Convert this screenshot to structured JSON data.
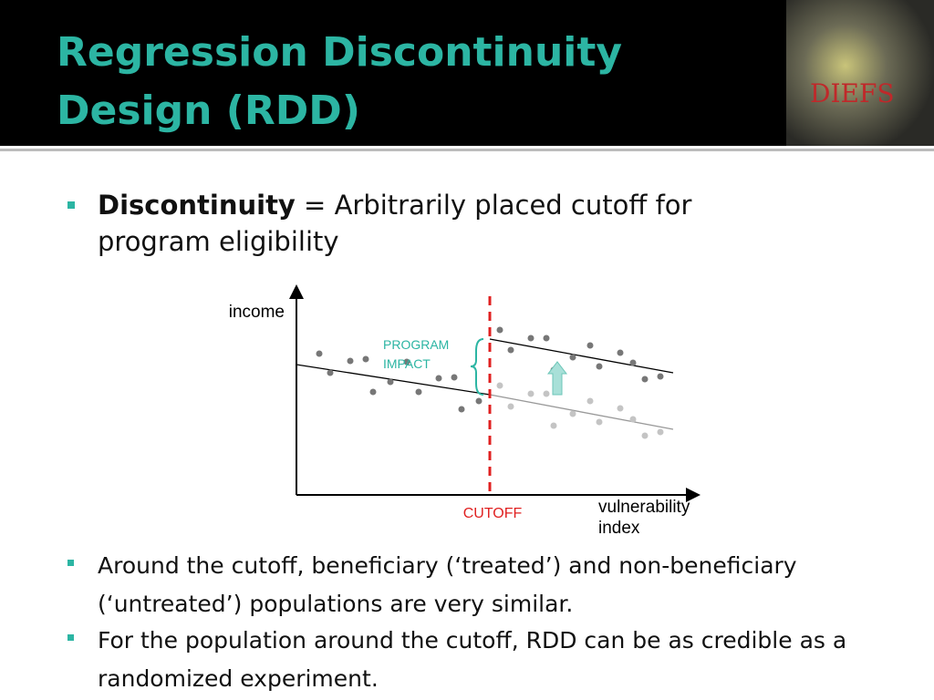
{
  "header": {
    "title": "Regression Discontinuity Design (RDD)",
    "logo": "DIEFS"
  },
  "bullets": [
    {
      "bold": "Discontinuity",
      "text": " = Arbitrarily placed cutoff for program eligibility"
    },
    {
      "text": "Around the cutoff, beneficiary (‘treated’) and non-beneficiary (‘untreated’) populations are very similar."
    },
    {
      "text": "For the population around the cutoff, RDD can be as credible as a randomized experiment."
    }
  ],
  "diagram": {
    "y_label": "income",
    "x_label": "vulnerability index",
    "impact_label": "PROGRAM IMPACT",
    "cutoff_label": "CUTOFF"
  }
}
